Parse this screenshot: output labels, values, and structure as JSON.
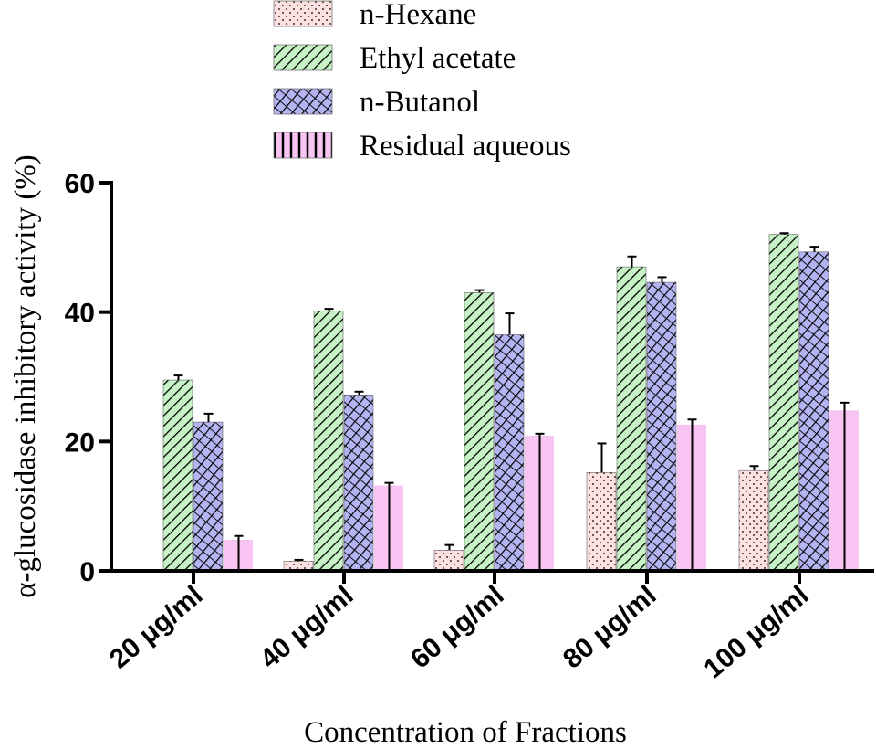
{
  "chart_data": {
    "type": "bar",
    "title": "",
    "xlabel": "Concentration of Fractions",
    "ylabel": "α-glucosidase inhibitory activity (%)",
    "ylim": [
      0,
      60
    ],
    "yticks": [
      "0",
      "20",
      "40",
      "60"
    ],
    "categories": [
      "20 μg/ml",
      "40 μg/ml",
      "60 μg/ml",
      "80 μg/ml",
      "100 μg/ml"
    ],
    "legend_position": "top",
    "series": [
      {
        "name": "n-Hexane",
        "pattern": "dots",
        "color": "#fde0e0",
        "values": [
          0,
          1.5,
          3.2,
          15.2,
          15.5
        ],
        "errors": [
          0,
          0.2,
          0.8,
          4.5,
          0.7
        ]
      },
      {
        "name": "Ethyl acetate",
        "pattern": "diagonal",
        "color": "#c6f2c6",
        "values": [
          29.5,
          40.2,
          43.0,
          47.0,
          52.0
        ],
        "errors": [
          0.7,
          0.3,
          0.4,
          1.6,
          0.2
        ]
      },
      {
        "name": "n-Butanol",
        "pattern": "crosshatch",
        "color": "#b4b4f2",
        "values": [
          23.0,
          27.2,
          36.5,
          44.6,
          49.3
        ],
        "errors": [
          1.3,
          0.5,
          3.3,
          0.8,
          0.8
        ]
      },
      {
        "name": "Residual aqueous",
        "pattern": "vertical",
        "color": "#f8c4f2",
        "values": [
          4.8,
          13.2,
          20.9,
          22.6,
          24.8
        ],
        "errors": [
          0.6,
          0.4,
          0.3,
          0.8,
          1.2
        ]
      }
    ]
  }
}
